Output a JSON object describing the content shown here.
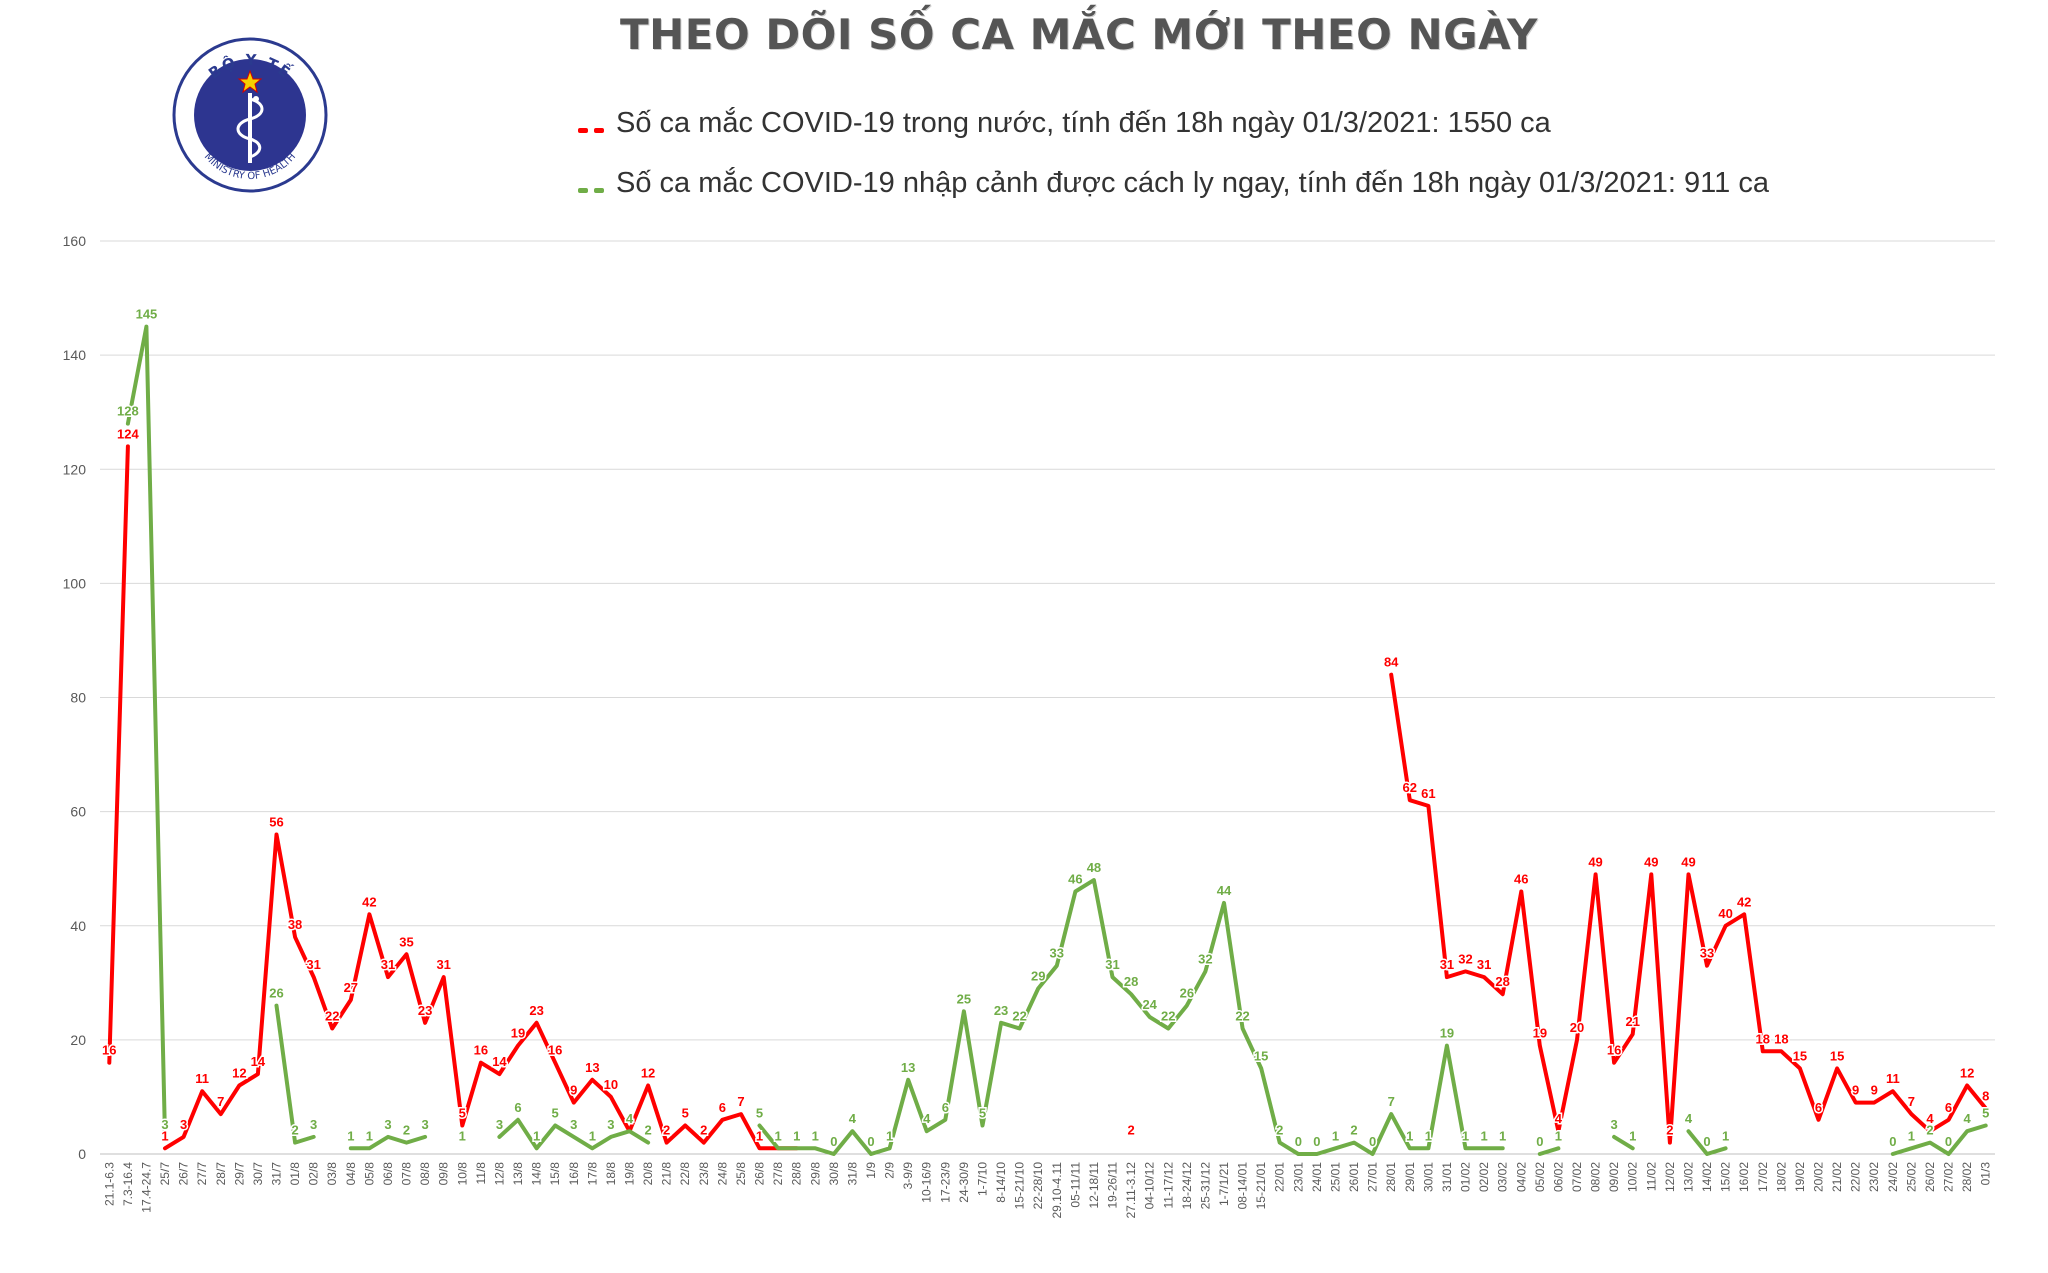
{
  "title": "THEO DÕI SỐ CA MẮC MỚI THEO NGÀY",
  "logo": {
    "top_text": "BỘ Y TẾ",
    "bottom_text": "MINISTRY OF HEALTH"
  },
  "colors": {
    "domestic": "#ff0000",
    "imported": "#70ad47",
    "grid": "#d9d9d9",
    "axis_text": "#595959"
  },
  "legend": {
    "domestic": "Số ca mắc COVID-19 trong nước, tính đến 18h ngày 01/3/2021: 1550 ca",
    "imported": "Số ca mắc COVID-19 nhập cảnh được cách ly ngay, tính đến 18h ngày 01/3/2021: 911 ca"
  },
  "chart_data": {
    "type": "line",
    "ylim": [
      0,
      160
    ],
    "yticks": [
      0,
      20,
      40,
      60,
      80,
      100,
      120,
      140,
      160
    ],
    "grid": true,
    "legend_position": "top",
    "categories": [
      "21.1-6.3",
      "7.3-16.4",
      "17.4-24.7",
      "25/7",
      "26/7",
      "27/7",
      "28/7",
      "29/7",
      "30/7",
      "31/7",
      "01/8",
      "02/8",
      "03/8",
      "04/8",
      "05/8",
      "06/8",
      "07/8",
      "08/8",
      "09/8",
      "10/8",
      "11/8",
      "12/8",
      "13/8",
      "14/8",
      "15/8",
      "16/8",
      "17/8",
      "18/8",
      "19/8",
      "20/8",
      "21/8",
      "22/8",
      "23/8",
      "24/8",
      "25/8",
      "26/8",
      "27/8",
      "28/8",
      "29/8",
      "30/8",
      "31/8",
      "1/9",
      "2/9",
      "3-9/9",
      "10-16/9",
      "17-23/9",
      "24-30/9",
      "1-7/10",
      "8-14/10",
      "15-21/10",
      "22-28/10",
      "29.10-4.11",
      "05-11/11",
      "12-18/11",
      "19-26/11",
      "27.11-3.12",
      "04-10/12",
      "11-17/12",
      "18-24/12",
      "25-31/12",
      "1-7/1/21",
      "08-14/01",
      "15-21/01",
      "22/01",
      "23/01",
      "24/01",
      "25/01",
      "26/01",
      "27/01",
      "28/01",
      "29/01",
      "30/01",
      "31/01",
      "01/02",
      "02/02",
      "03/02",
      "04/02",
      "05/02",
      "06/02",
      "07/02",
      "08/02",
      "09/02",
      "10/02",
      "11/02",
      "12/02",
      "13/02",
      "14/02",
      "15/02",
      "16/02",
      "17/02",
      "18/02",
      "19/02",
      "20/02",
      "21/02",
      "22/02",
      "23/02",
      "24/02",
      "25/02",
      "26/02",
      "27/02",
      "28/02",
      "01/3"
    ],
    "series": [
      {
        "name": "Số ca mắc COVID-19 trong nước, tính đến 18h ngày 01/3/2021: 1550 ca",
        "values": [
          16,
          124,
          null,
          1,
          3,
          11,
          7,
          12,
          14,
          56,
          38,
          31,
          22,
          27,
          42,
          31,
          35,
          23,
          31,
          5,
          16,
          14,
          19,
          23,
          16,
          9,
          13,
          10,
          4,
          12,
          2,
          5,
          2,
          6,
          7,
          1,
          1,
          1,
          null,
          null,
          null,
          null,
          1,
          null,
          null,
          null,
          null,
          null,
          null,
          null,
          null,
          null,
          null,
          null,
          null,
          2,
          null,
          null,
          null,
          null,
          null,
          null,
          null,
          null,
          null,
          null,
          null,
          null,
          null,
          84,
          62,
          61,
          31,
          32,
          31,
          28,
          46,
          19,
          4,
          20,
          49,
          16,
          21,
          49,
          2,
          49,
          33,
          40,
          42,
          18,
          18,
          15,
          6,
          15,
          9,
          9,
          11,
          7,
          4,
          6,
          12,
          8
        ]
      },
      {
        "name": "Số ca mắc COVID-19 nhập cảnh được cách ly ngay, tính đến 18h ngày 01/3/2021: 911 ca",
        "values": [
          null,
          128,
          145,
          3,
          null,
          null,
          null,
          null,
          null,
          26,
          2,
          3,
          null,
          1,
          1,
          3,
          2,
          3,
          null,
          1,
          null,
          3,
          6,
          1,
          5,
          3,
          1,
          3,
          4,
          2,
          null,
          null,
          null,
          null,
          null,
          5,
          1,
          1,
          1,
          0,
          4,
          0,
          1,
          13,
          4,
          6,
          25,
          5,
          23,
          22,
          29,
          33,
          46,
          48,
          31,
          28,
          24,
          22,
          26,
          32,
          44,
          22,
          15,
          2,
          0,
          0,
          1,
          2,
          0,
          7,
          1,
          1,
          19,
          1,
          1,
          1,
          null,
          0,
          1,
          null,
          null,
          3,
          1,
          null,
          null,
          4,
          0,
          1,
          null,
          null,
          null,
          null,
          null,
          null,
          null,
          null,
          0,
          1,
          2,
          0,
          4,
          5
        ]
      }
    ]
  }
}
